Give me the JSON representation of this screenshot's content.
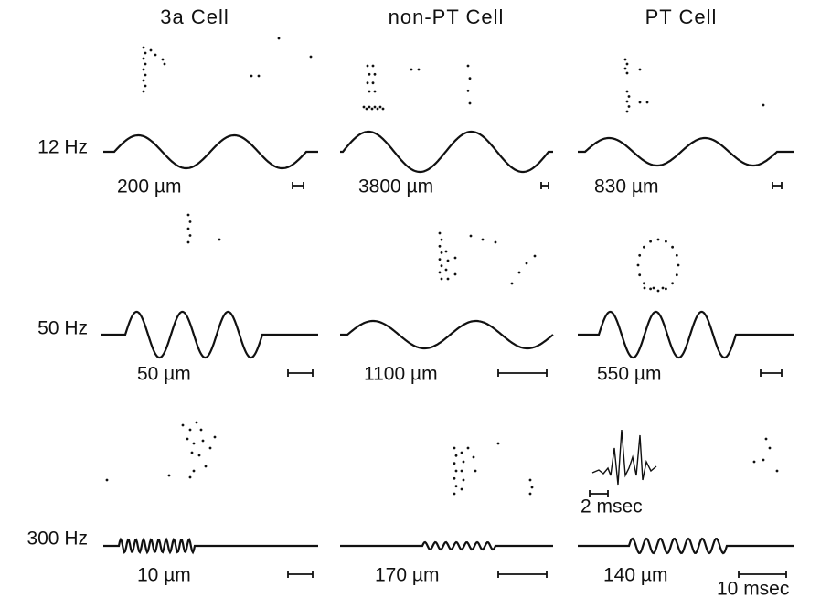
{
  "columns": [
    "3a Cell",
    "non-PT Cell",
    "PT Cell"
  ],
  "rows": [
    {
      "label": "12 Hz",
      "amplitudes": [
        "200 µm",
        "3800 µm",
        "830 µm"
      ]
    },
    {
      "label": "50 Hz",
      "amplitudes": [
        "50 µm",
        "1100 µm",
        "550 µm"
      ]
    },
    {
      "label": "300 Hz",
      "amplitudes": [
        "10 µm",
        "170 µm",
        "140 µm"
      ]
    }
  ],
  "inset_scale": "2 msec",
  "time_scale": "10 msec"
}
